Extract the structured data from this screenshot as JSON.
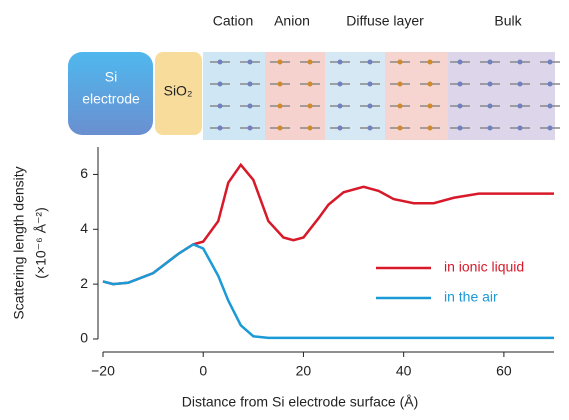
{
  "chart_data": {
    "type": "line",
    "xlabel": "Distance from Si electrode surface (Å)",
    "ylabel": [
      "Scattering length density",
      "(×10⁻⁶ Å⁻²)"
    ],
    "x": [
      -20,
      -18,
      -15,
      -10,
      -5,
      -2,
      0,
      3,
      5,
      7.5,
      10,
      13,
      16,
      18,
      20,
      23,
      25,
      28,
      32,
      35,
      38,
      42,
      46,
      50,
      55,
      60,
      70
    ],
    "series": [
      {
        "name": "in ionic liquid",
        "color": "#d7192a",
        "values": [
          2.1,
          2.0,
          2.05,
          2.4,
          3.1,
          3.45,
          3.55,
          4.3,
          5.7,
          6.35,
          5.8,
          4.3,
          3.7,
          3.6,
          3.7,
          4.4,
          4.9,
          5.35,
          5.55,
          5.4,
          5.1,
          4.95,
          4.95,
          5.15,
          5.3,
          5.3,
          5.3
        ]
      },
      {
        "name": "in the air",
        "color": "#1a9ad6",
        "values": [
          2.1,
          2.0,
          2.05,
          2.4,
          3.1,
          3.45,
          3.3,
          2.3,
          1.4,
          0.5,
          0.1,
          0.04,
          0.04,
          0.04,
          0.04,
          0.04,
          0.04,
          0.04,
          0.04,
          0.04,
          0.04,
          0.04,
          0.04,
          0.04,
          0.04,
          0.04,
          0.04
        ]
      }
    ],
    "xlim": [
      -20,
      70
    ],
    "ylim": [
      0,
      7
    ],
    "xticks": [
      {
        "value": -20,
        "label": "−20"
      },
      0,
      20,
      40,
      60
    ],
    "yticks": [
      0,
      2,
      4,
      6
    ],
    "legend": "right",
    "diagram": {
      "electrode": [
        "Si",
        "electrode"
      ],
      "oxide": "SiO₂",
      "regions": [
        "Cation",
        "Anion",
        "Diffuse layer",
        "Bulk"
      ]
    }
  }
}
